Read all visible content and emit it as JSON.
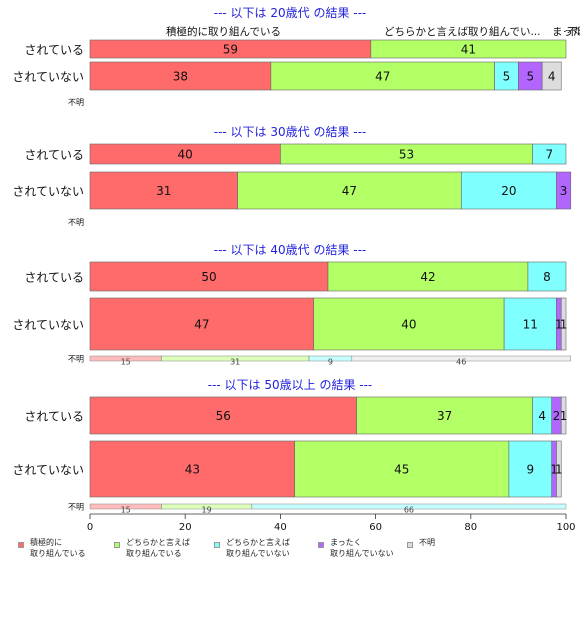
{
  "chart_data": {
    "type": "bar",
    "orientation": "horizontal",
    "stacked": true,
    "xlim": [
      0,
      100
    ],
    "x_ticks": [
      "0",
      "20",
      "40",
      "60",
      "80",
      "100"
    ],
    "legend": {
      "placement": "bottom",
      "entries": [
        {
          "name": "積極的に\n取り組んでいる",
          "color": "#FF6B6B"
        },
        {
          "name": "どちらかと言えば\n取り組んでいる",
          "color": "#B2FF66"
        },
        {
          "name": "どちらかと言えば\n取り組んでいない",
          "color": "#80FFFF"
        },
        {
          "name": "まったく\n取り組んでいない",
          "color": "#B266FF"
        },
        {
          "name": "不明",
          "color": "#DDDDDD"
        }
      ]
    },
    "panels": [
      {
        "title": "--- 以下は 20歳代 の結果 ---",
        "top_labels": [
          "積極的に取り組んでいる",
          "どちらかと言えば取り組んでい...",
          "まった...",
          "不明"
        ],
        "rows": [
          {
            "label": "されている",
            "values": [
              59,
              41,
              0,
              0,
              0
            ],
            "value_labels": [
              "59",
              "41",
              "",
              "",
              ""
            ]
          },
          {
            "label": "されていない",
            "values": [
              38,
              47,
              5,
              5,
              4
            ],
            "value_labels": [
              "38",
              "47",
              "5",
              "5",
              "4"
            ]
          }
        ],
        "unknown": {
          "label": "不明",
          "values": [],
          "value_labels": []
        }
      },
      {
        "title": "--- 以下は 30歳代 の結果 ---",
        "top_labels": [],
        "rows": [
          {
            "label": "されている",
            "values": [
              40,
              53,
              7,
              0,
              0
            ],
            "value_labels": [
              "40",
              "53",
              "7",
              "",
              ""
            ]
          },
          {
            "label": "されていない",
            "values": [
              31,
              47,
              20,
              3,
              0
            ],
            "value_labels": [
              "31",
              "47",
              "20",
              "3",
              ""
            ]
          }
        ],
        "unknown": {
          "label": "不明",
          "values": [],
          "value_labels": []
        }
      },
      {
        "title": "--- 以下は 40歳代 の結果 ---",
        "top_labels": [],
        "rows": [
          {
            "label": "されている",
            "values": [
              50,
              42,
              8,
              0,
              0
            ],
            "value_labels": [
              "50",
              "42",
              "8",
              "",
              ""
            ]
          },
          {
            "label": "されていない",
            "values": [
              47,
              40,
              11,
              1,
              1
            ],
            "value_labels": [
              "47",
              "40",
              "11",
              "1",
              "1"
            ]
          }
        ],
        "unknown": {
          "label": "不明",
          "values": [
            15,
            31,
            9,
            0,
            46
          ],
          "value_labels": [
            "15",
            "31",
            "9",
            "",
            "46"
          ]
        }
      },
      {
        "title": "--- 以下は 50歳以上 の結果 ---",
        "top_labels": [],
        "rows": [
          {
            "label": "されている",
            "values": [
              56,
              37,
              4,
              2,
              1
            ],
            "value_labels": [
              "56",
              "37",
              "4",
              "2",
              "1"
            ]
          },
          {
            "label": "されていない",
            "values": [
              43,
              45,
              9,
              1,
              1
            ],
            "value_labels": [
              "43",
              "45",
              "9",
              "1",
              "1"
            ]
          }
        ],
        "unknown": {
          "label": "不明",
          "values": [
            15,
            19,
            66,
            0,
            0
          ],
          "value_labels": [
            "15",
            "19",
            "66",
            "",
            ""
          ]
        }
      }
    ]
  }
}
